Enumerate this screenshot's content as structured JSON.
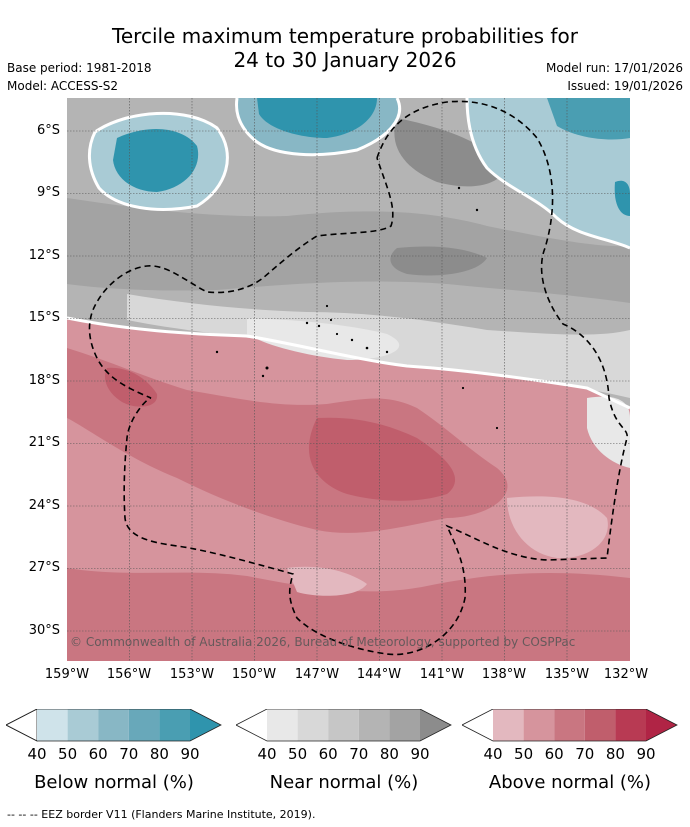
{
  "title_line1": "Tercile maximum temperature probabilities for",
  "title_line2": "24 to 30 January 2026",
  "meta": {
    "base_period": "Base period: 1981-2018",
    "model": "Model: ACCESS-S2",
    "model_run": "Model run: 17/01/2026",
    "issued": "Issued: 19/01/2026"
  },
  "axes": {
    "lat_labels": [
      "6°S",
      "9°S",
      "12°S",
      "15°S",
      "18°S",
      "21°S",
      "24°S",
      "27°S",
      "30°S"
    ],
    "lon_labels": [
      "159°W",
      "156°W",
      "153°W",
      "150°W",
      "147°W",
      "144°W",
      "141°W",
      "138°W",
      "135°W",
      "132°W"
    ]
  },
  "copyright": "© Commonwealth of Australia 2026, Bureau of Meteorology, supported by COSPPac",
  "legends": [
    {
      "name": "Below normal (%)",
      "ticks": [
        "40",
        "50",
        "60",
        "70",
        "80",
        "90"
      ],
      "colors": [
        "#ffffff",
        "#cfe3ea",
        "#a9cbd5",
        "#88b7c5",
        "#68a8ba",
        "#4a9eb2",
        "#2f94ad"
      ]
    },
    {
      "name": "Near normal (%)",
      "ticks": [
        "40",
        "50",
        "60",
        "70",
        "80",
        "90"
      ],
      "colors": [
        "#ffffff",
        "#e8e8e8",
        "#d8d8d8",
        "#c6c6c6",
        "#b4b4b4",
        "#a3a3a3",
        "#8c8c8c"
      ]
    },
    {
      "name": "Above normal (%)",
      "ticks": [
        "40",
        "50",
        "60",
        "70",
        "80",
        "90"
      ],
      "colors": [
        "#ffffff",
        "#e3b8bf",
        "#d6949d",
        "#c97681",
        "#c05e6c",
        "#b83a53",
        "#b02445"
      ]
    }
  ],
  "eez_note": "-- -- -- EEZ border V11 (Flanders Marine Institute, 2019)."
}
